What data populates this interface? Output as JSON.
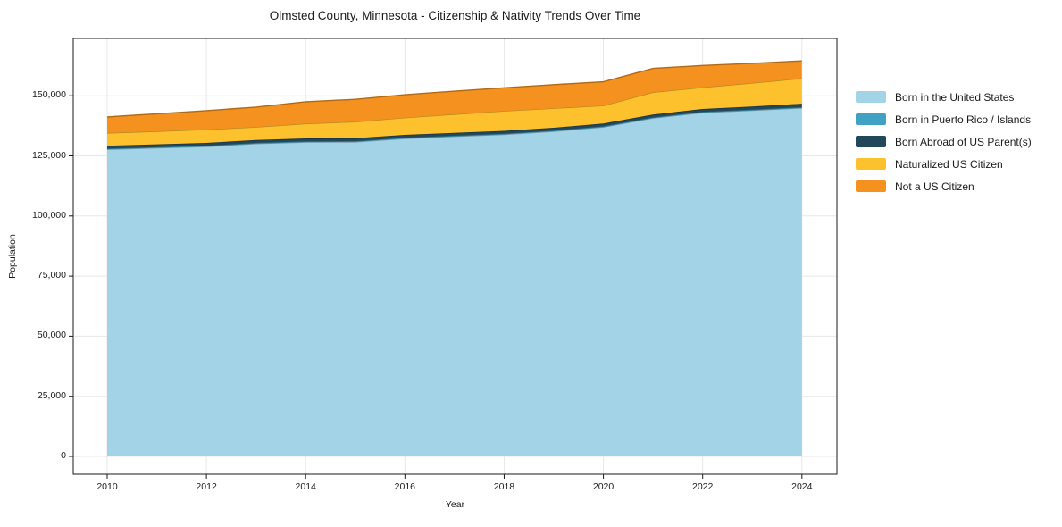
{
  "chart_data": {
    "type": "area",
    "stacked": true,
    "title": "Olmsted County, Minnesota - Citizenship & Nativity Trends Over Time",
    "xlabel": "Year",
    "ylabel": "Population",
    "x": [
      2010,
      2011,
      2012,
      2013,
      2014,
      2015,
      2016,
      2017,
      2018,
      2019,
      2020,
      2021,
      2022,
      2023,
      2024
    ],
    "xticks": [
      2010,
      2012,
      2014,
      2016,
      2018,
      2020,
      2022,
      2024
    ],
    "yticks": [
      {
        "value": 0,
        "label": "0"
      },
      {
        "value": 25000,
        "label": "25,000"
      },
      {
        "value": 50000,
        "label": "50,000"
      },
      {
        "value": 75000,
        "label": "75,000"
      },
      {
        "value": 100000,
        "label": "100,000"
      },
      {
        "value": 125000,
        "label": "125,000"
      },
      {
        "value": 150000,
        "label": "150,000"
      }
    ],
    "xlim": [
      2009.32,
      2024.7
    ],
    "ylim": [
      -7430,
      173850
    ],
    "grid": true,
    "legend_position": "right-outside",
    "grid_color": "#e7e7e7",
    "spine_color": "#1a1a1a",
    "series": [
      {
        "name": "Born in the United States",
        "color": "#a3d3e6",
        "values": [
          127700,
          128300,
          128900,
          130100,
          130700,
          130800,
          132250,
          133100,
          133900,
          135200,
          137000,
          140700,
          143000,
          143900,
          144900
        ]
      },
      {
        "name": "Born in Puerto Rico / Islands",
        "color": "#3fa2c2",
        "values": [
          300,
          300,
          300,
          300,
          300,
          300,
          300,
          300,
          300,
          300,
          300,
          300,
          300,
          300,
          350
        ]
      },
      {
        "name": "Born Abroad of US Parent(s)",
        "color": "#22465a",
        "values": [
          1200,
          1200,
          1200,
          1200,
          1250,
          1200,
          1190,
          1200,
          1200,
          1200,
          1150,
          1150,
          1200,
          1300,
          1450
        ]
      },
      {
        "name": "Naturalized US Citizen",
        "color": "#fcc12d",
        "values": [
          5300,
          5400,
          5600,
          5400,
          6150,
          6900,
          7160,
          7700,
          8300,
          8100,
          7450,
          9300,
          9000,
          9800,
          10550
        ]
      },
      {
        "name": "Not a US Citizen",
        "color": "#f5921f",
        "values": [
          6700,
          7300,
          7800,
          8300,
          9100,
          9300,
          9500,
          9600,
          9600,
          9800,
          9900,
          9900,
          9100,
          8200,
          7250
        ]
      }
    ]
  }
}
